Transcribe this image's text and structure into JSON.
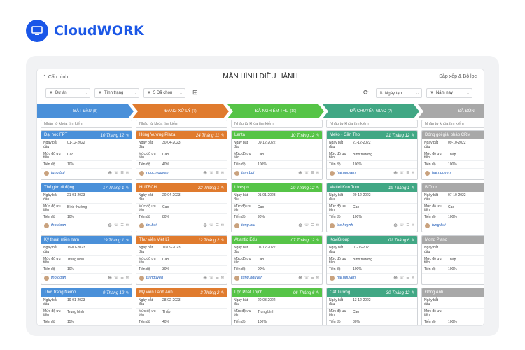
{
  "brand": {
    "name": "CloudWORK",
    "color": "#1a56e8"
  },
  "header": {
    "config_label": "Cấu hình",
    "title": "MÀN HÌNH ĐIỀU HÀNH",
    "sort_label": "Sắp xếp & Bộ lọc"
  },
  "filters": {
    "project": "Dự án",
    "status": "Tình trạng",
    "selected": "5 Đã chọn",
    "created": "Ngày tạo",
    "year": "Năm nay"
  },
  "stages": [
    {
      "label": "BẮT ĐẦU",
      "count": "(8)",
      "color": "#4a90d9"
    },
    {
      "label": "ĐANG XỬ LÝ",
      "count": "(7)",
      "color": "#e07b2e"
    },
    {
      "label": "ĐÃ NGHIỆM THU",
      "count": "(10)",
      "color": "#56c447"
    },
    {
      "label": "ĐÃ CHUYỂN GIAO",
      "count": "(7)",
      "color": "#41a784"
    },
    {
      "label": "ĐÃ ĐÓN",
      "count": "",
      "color": "#a8a8a8"
    }
  ],
  "search_placeholder": "Nhập từ khóa tìm kiếm",
  "labels": {
    "start": "Ngày bắt đầu",
    "priority": "Mức độ ưu tiên",
    "progress": "Tiến độ"
  },
  "columns": [
    {
      "cards": [
        {
          "name": "Đại học FPT",
          "date": "10 Tháng 12",
          "start": "01-12-2022",
          "priority": "Cao",
          "progress": "10%",
          "user": "tung.bui"
        },
        {
          "name": "Thế giới di động",
          "date": "17 Tháng 1",
          "start": "21-01-2023",
          "priority": "Bình thường",
          "progress": "10%",
          "user": "tho.doan"
        },
        {
          "name": "Kỹ thuật miền nam",
          "date": "19 Tháng 1",
          "start": "19-01-2023",
          "priority": "Trung bình",
          "progress": "10%",
          "user": "tho.doan"
        },
        {
          "name": "Thời trang Nemo",
          "date": "9 Tháng 12",
          "start": "19-01-2023",
          "priority": "Trung bình",
          "progress": "15%",
          "user": ""
        }
      ]
    },
    {
      "cards": [
        {
          "name": "Hùng Vương Plaza",
          "date": "24 Tháng 11",
          "start": "30-04-2023",
          "priority": "Cao",
          "progress": "40%",
          "user": "ngoc.nguyen"
        },
        {
          "name": "HUTECH",
          "date": "22 Tháng 1",
          "start": "20-04-2023",
          "priority": "Cao",
          "progress": "80%",
          "user": "tin.bui"
        },
        {
          "name": "Thư viện Việt Lĩ",
          "date": "12 Tháng 2",
          "start": "10-09-2023",
          "priority": "Cao",
          "progress": "30%",
          "user": "tri.nguyen"
        },
        {
          "name": "Mỹ viện Lanh Anh",
          "date": "3 Tháng 2",
          "start": "28-02-2023",
          "priority": "Thấp",
          "progress": "40%",
          "user": ""
        }
      ]
    },
    {
      "cards": [
        {
          "name": "Lenta",
          "date": "10 Tháng 12",
          "start": "09-12-2022",
          "priority": "Cao",
          "progress": "100%",
          "user": "tam.bui"
        },
        {
          "name": "Livespo",
          "date": "29 Tháng 12",
          "start": "01-01-2023",
          "priority": "Cao",
          "progress": "90%",
          "user": "tung.bui"
        },
        {
          "name": "Atlantic Edu",
          "date": "07 Tháng 12",
          "start": "01-12-2022",
          "priority": "Cao",
          "progress": "90%",
          "user": "tung.nguyen"
        },
        {
          "name": "Lộc Phát Thịnh",
          "date": "06 Tháng 6",
          "start": "20-03-2022",
          "priority": "Trung bình",
          "progress": "100%",
          "user": ""
        }
      ]
    },
    {
      "cards": [
        {
          "name": "Meko - Cần Thơ",
          "date": "21 Tháng 12",
          "start": "21-12-2022",
          "priority": "Bình thường",
          "progress": "100%",
          "user": "hai.nguyen"
        },
        {
          "name": "Viettel Kon Tum",
          "date": "19 Tháng 1",
          "start": "29-12-2022",
          "priority": "Cao",
          "progress": "100%",
          "user": "loc.huynh"
        },
        {
          "name": "KoviGroup",
          "date": "01 Tháng 6",
          "start": "01-06-2021",
          "priority": "Bình thường",
          "progress": "100%",
          "user": "hai.nguyen"
        },
        {
          "name": "Cát Tường",
          "date": "30 Tháng 12",
          "start": "13-12-2022",
          "priority": "Cao",
          "progress": "80%",
          "user": ""
        }
      ]
    },
    {
      "cards": [
        {
          "name": "Đóng gói giải pháp CRM",
          "date": "",
          "start": "09-10-2022",
          "priority": "Thấp",
          "progress": "100%",
          "user": "hai.nguyen"
        },
        {
          "name": "BITour",
          "date": "",
          "start": "07-10-2022",
          "priority": "Cao",
          "progress": "100%",
          "user": "tung.bui"
        },
        {
          "name": "Mond Piano",
          "date": "",
          "start": "",
          "priority": "Thấp",
          "progress": "100%",
          "user": ""
        },
        {
          "name": "Đông Anh",
          "date": "",
          "start": "",
          "priority": "",
          "progress": "100%",
          "user": ""
        }
      ]
    }
  ]
}
